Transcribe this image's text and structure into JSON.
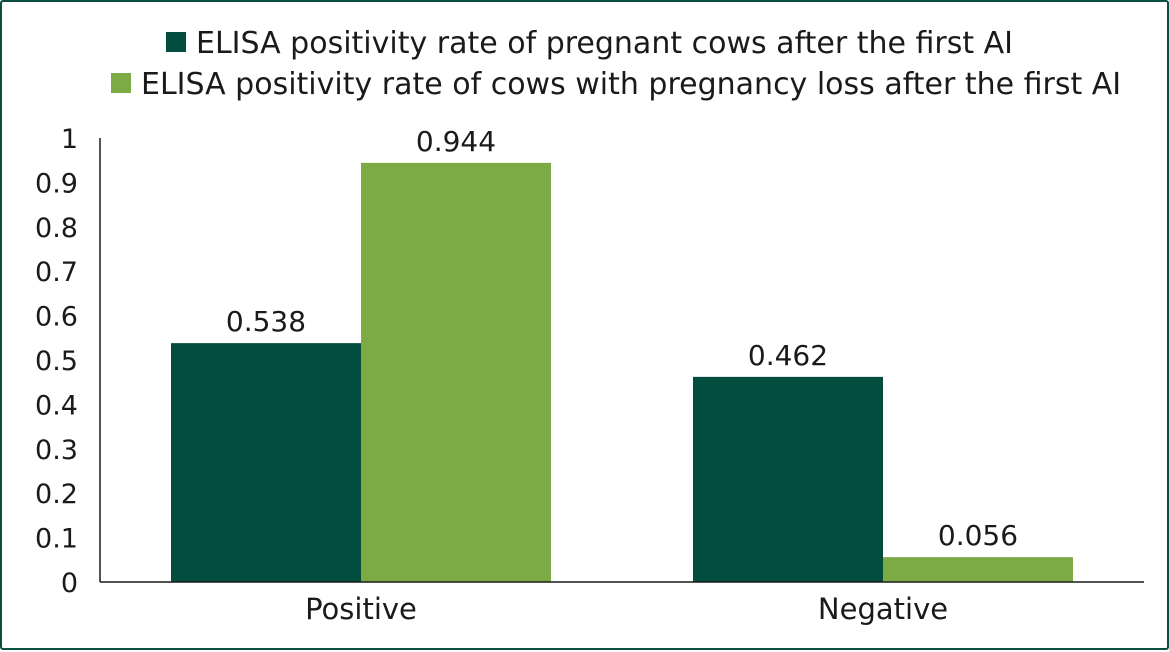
{
  "chart_data": {
    "type": "bar",
    "categories": [
      "Positive",
      "Negative"
    ],
    "series": [
      {
        "name": "ELISA positivity rate of pregnant cows after the first AI",
        "values": [
          0.538,
          0.462
        ],
        "color": "#034d3e"
      },
      {
        "name": "ELISA positivity rate of cows with pregnancy loss after the first AI",
        "values": [
          0.944,
          0.056
        ],
        "color": "#7cab46"
      }
    ],
    "data_labels": [
      [
        "0.538",
        "0.462"
      ],
      [
        "0.944",
        "0.056"
      ]
    ],
    "ylim": [
      0,
      1
    ],
    "yticks": [
      "0",
      "0.1",
      "0.2",
      "0.3",
      "0.4",
      "0.5",
      "0.6",
      "0.7",
      "0.8",
      "0.9",
      "1"
    ],
    "legend_position": "top",
    "grid": false
  }
}
